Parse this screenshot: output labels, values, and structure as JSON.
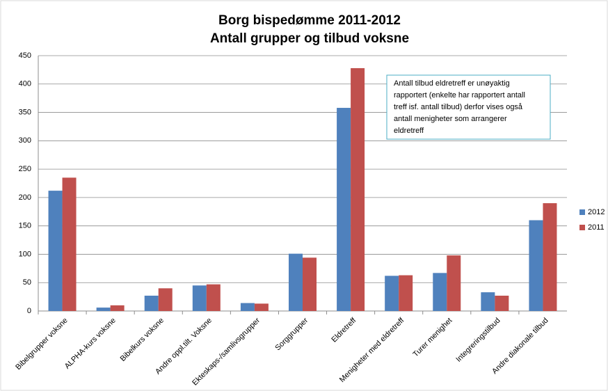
{
  "chart_data": {
    "type": "bar",
    "title": "Borg bispedømme 2011-2012",
    "subtitle": "Antall grupper og tilbud voksne",
    "categories": [
      "Bibelgrupper voksne",
      "ALPHA-kurs voksne",
      "Bibelkurs voksne",
      "Andre oppl.tilt. Voksne",
      "Ekteskaps-/samlivsgrupper",
      "Sorggrupper",
      "Eldretreff",
      "Menigheter med eldretreff",
      "Turer menighet",
      "Integreringstilbud",
      "Andre diakonale tilbud"
    ],
    "series": [
      {
        "name": "2012",
        "color": "#4f81bd",
        "values": [
          212,
          6,
          27,
          45,
          14,
          101,
          358,
          62,
          67,
          33,
          160
        ]
      },
      {
        "name": "2011",
        "color": "#c0504d",
        "values": [
          235,
          10,
          40,
          47,
          13,
          94,
          428,
          63,
          98,
          27,
          190
        ]
      }
    ],
    "ylim": [
      0,
      450
    ],
    "yticks": [
      0,
      50,
      100,
      150,
      200,
      250,
      300,
      350,
      400,
      450
    ],
    "grid": true,
    "legend": "right",
    "annotation": [
      "Antall tilbud eldretreff  er unøyaktig",
      "rapportert  (enkelte har rapportert antall",
      "treff isf. antall tilbud) derfor vises også",
      "antall menigheter som arrangerer",
      "eldretreff"
    ]
  }
}
